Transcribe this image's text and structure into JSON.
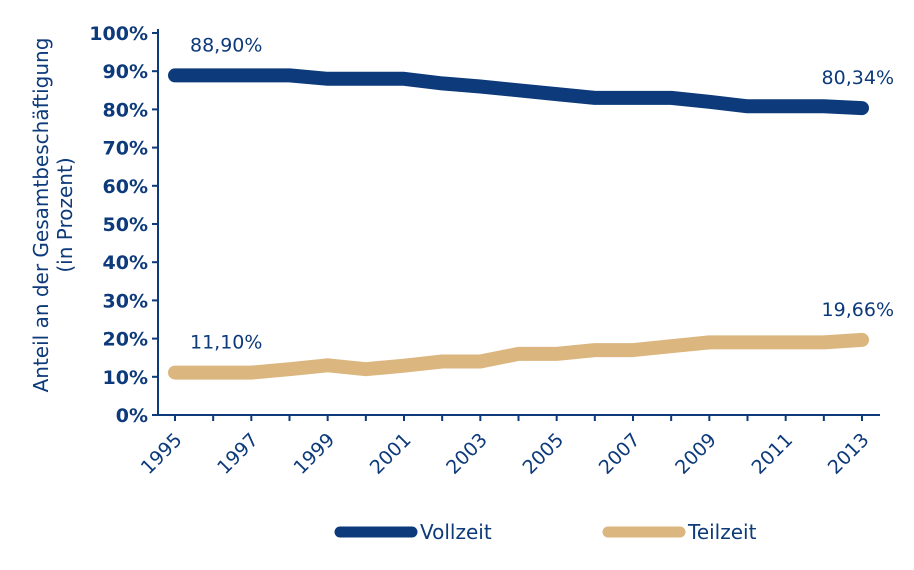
{
  "chart_data": {
    "type": "line",
    "title": "",
    "xlabel": "",
    "ylabel": [
      "Anteil an der Gesamtbeschäftigung",
      "(in Prozent)"
    ],
    "y_tick_labels": [
      "0%",
      "10%",
      "20%",
      "30%",
      "40%",
      "50%",
      "60%",
      "70%",
      "80%",
      "90%",
      "100%"
    ],
    "x_tick_labels": [
      "1995",
      "1997",
      "1999",
      "2001",
      "2003",
      "2005",
      "2007",
      "2009",
      "2011",
      "2013"
    ],
    "ylim": [
      0,
      100
    ],
    "xlim": [
      1995,
      2013
    ],
    "grid": false,
    "legend_position": "bottom",
    "x": [
      1995,
      1996,
      1997,
      1998,
      1999,
      2000,
      2001,
      2002,
      2003,
      2004,
      2005,
      2006,
      2007,
      2008,
      2009,
      2010,
      2011,
      2012,
      2013
    ],
    "series": [
      {
        "name": "Vollzeit",
        "color": "#0d3a7a",
        "values": [
          88.9,
          88.9,
          88.9,
          88.9,
          88.0,
          88.0,
          88.0,
          86.8,
          86.0,
          85.0,
          84.0,
          83.0,
          83.0,
          83.0,
          82.0,
          80.8,
          80.8,
          80.8,
          80.34
        ]
      },
      {
        "name": "Teilzeit",
        "color": "#dcb67f",
        "values": [
          11.1,
          11.1,
          11.1,
          12.0,
          13.0,
          12.0,
          12.9,
          14.0,
          14.0,
          16.0,
          16.0,
          17.0,
          17.0,
          18.0,
          19.0,
          19.0,
          19.0,
          19.0,
          19.66
        ]
      }
    ],
    "annotations": [
      {
        "text": "88,90%",
        "series": 0,
        "point": "start"
      },
      {
        "text": "80,34%",
        "series": 0,
        "point": "end"
      },
      {
        "text": "11,10%",
        "series": 1,
        "point": "start"
      },
      {
        "text": "19,66%",
        "series": 1,
        "point": "end"
      }
    ]
  }
}
